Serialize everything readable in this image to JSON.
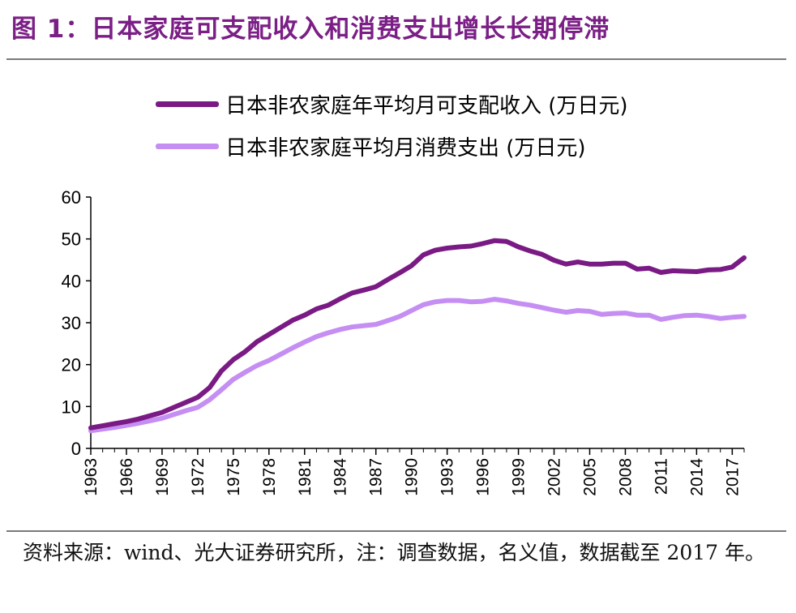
{
  "title": "图 1：日本家庭可支配收入和消费支出增长长期停滞",
  "source_note": "资料来源：wind、光大证券研究所，注：调查数据，名义值，数据截至 2017 年。",
  "colors": {
    "title": "#7b1f86",
    "income": "#7a1a84",
    "consumption": "#c58ef3"
  },
  "chart_data": {
    "type": "line",
    "legend_position": "top",
    "ylim": [
      0,
      60
    ],
    "yticks": [
      0,
      10,
      20,
      30,
      40,
      50,
      60
    ],
    "xlim": [
      1963,
      2018
    ],
    "xticks": [
      "1963",
      "1966",
      "1969",
      "1972",
      "1975",
      "1978",
      "1981",
      "1984",
      "1987",
      "1990",
      "1993",
      "1996",
      "1999",
      "2002",
      "2005",
      "2008",
      "2011",
      "2014",
      "2017"
    ],
    "x": [
      1963,
      1964,
      1965,
      1966,
      1967,
      1968,
      1969,
      1970,
      1971,
      1972,
      1973,
      1974,
      1975,
      1976,
      1977,
      1978,
      1979,
      1980,
      1981,
      1982,
      1983,
      1984,
      1985,
      1986,
      1987,
      1988,
      1989,
      1990,
      1991,
      1992,
      1993,
      1994,
      1995,
      1996,
      1997,
      1998,
      1999,
      2000,
      2001,
      2002,
      2003,
      2004,
      2005,
      2006,
      2007,
      2008,
      2009,
      2010,
      2011,
      2012,
      2013,
      2014,
      2015,
      2016,
      2017,
      2018
    ],
    "series": [
      {
        "name": "日本非农家庭年平均月可支配收入 (万日元)",
        "values": [
          4.9,
          5.4,
          5.9,
          6.4,
          7.0,
          7.8,
          8.6,
          9.8,
          11.0,
          12.2,
          14.5,
          18.5,
          21.2,
          23.1,
          25.5,
          27.2,
          28.9,
          30.6,
          31.8,
          33.3,
          34.2,
          35.7,
          37.1,
          37.8,
          38.6,
          40.3,
          41.9,
          43.6,
          46.2,
          47.3,
          47.8,
          48.1,
          48.3,
          48.9,
          49.6,
          49.4,
          48.1,
          47.1,
          46.3,
          44.9,
          44.0,
          44.5,
          44.0,
          44.0,
          44.2,
          44.2,
          42.8,
          43.0,
          42.0,
          42.4,
          42.3,
          42.2,
          42.6,
          42.7,
          43.3,
          45.5
        ]
      },
      {
        "name": "日本非农家庭平均月消费支出 (万日元)",
        "values": [
          4.2,
          4.6,
          5.0,
          5.5,
          6.0,
          6.6,
          7.2,
          8.1,
          9.0,
          9.8,
          11.6,
          14.0,
          16.5,
          18.2,
          19.8,
          21.0,
          22.5,
          24.0,
          25.4,
          26.7,
          27.6,
          28.4,
          29.0,
          29.3,
          29.6,
          30.5,
          31.5,
          32.9,
          34.3,
          35.0,
          35.3,
          35.3,
          35.0,
          35.1,
          35.6,
          35.2,
          34.6,
          34.2,
          33.6,
          33.0,
          32.5,
          32.9,
          32.7,
          32.0,
          32.2,
          32.3,
          31.8,
          31.8,
          30.8,
          31.3,
          31.7,
          31.8,
          31.5,
          31.0,
          31.3,
          31.5
        ]
      }
    ]
  }
}
